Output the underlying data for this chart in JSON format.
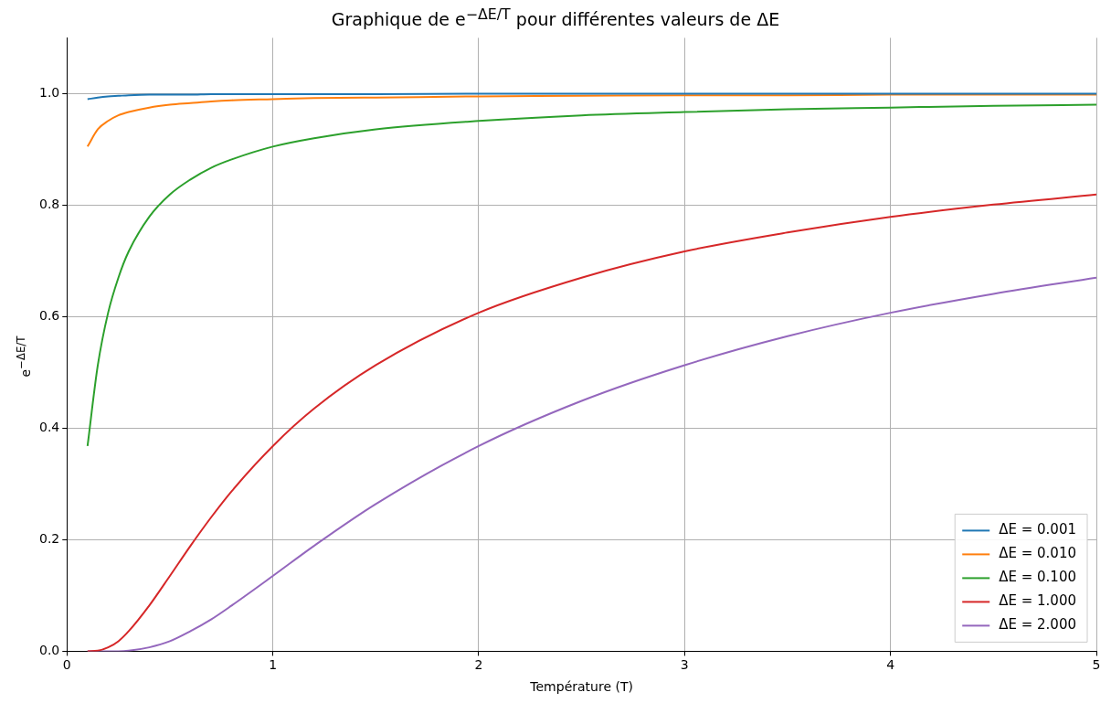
{
  "chart_data": {
    "type": "line",
    "title": "Graphique de e$^{−ΔE/T}$ pour différentes valeurs de ΔE",
    "xlabel": "Température (T)",
    "ylabel": "e$^{−ΔE/T}$",
    "x": [
      0.1,
      0.15,
      0.2,
      0.25,
      0.3,
      0.4,
      0.5,
      0.6,
      0.7,
      0.8,
      1.0,
      1.2,
      1.5,
      2,
      2.5,
      3,
      3.5,
      4,
      4.5,
      5
    ],
    "series": [
      {
        "name": "ΔE = 0.001",
        "color": "#1f77b4",
        "values": [
          0.99,
          0.993,
          0.995,
          0.996,
          0.997,
          0.998,
          0.998,
          0.998,
          0.999,
          0.999,
          0.999,
          0.999,
          0.999,
          1.0,
          1.0,
          1.0,
          1.0,
          1.0,
          1.0,
          1.0
        ]
      },
      {
        "name": "ΔE = 0.010",
        "color": "#ff7f0e",
        "values": [
          0.905,
          0.936,
          0.951,
          0.961,
          0.967,
          0.975,
          0.98,
          0.983,
          0.986,
          0.988,
          0.99,
          0.992,
          0.993,
          0.995,
          0.996,
          0.997,
          0.997,
          0.998,
          0.998,
          0.998
        ]
      },
      {
        "name": "ΔE = 0.100",
        "color": "#2ca02c",
        "values": [
          0.368,
          0.513,
          0.607,
          0.67,
          0.717,
          0.779,
          0.819,
          0.846,
          0.867,
          0.882,
          0.905,
          0.92,
          0.936,
          0.951,
          0.961,
          0.967,
          0.972,
          0.975,
          0.978,
          0.98
        ]
      },
      {
        "name": "ΔE = 1.000",
        "color": "#d62728",
        "values": [
          0.0,
          0.001,
          0.007,
          0.018,
          0.036,
          0.082,
          0.135,
          0.189,
          0.24,
          0.287,
          0.368,
          0.435,
          0.513,
          0.607,
          0.67,
          0.717,
          0.751,
          0.779,
          0.801,
          0.819
        ]
      },
      {
        "name": "ΔE = 2.000",
        "color": "#9467bd",
        "values": [
          0.0,
          0.0,
          0.0,
          0.0,
          0.001,
          0.007,
          0.018,
          0.036,
          0.057,
          0.082,
          0.135,
          0.189,
          0.264,
          0.368,
          0.449,
          0.513,
          0.565,
          0.607,
          0.641,
          0.67
        ]
      }
    ],
    "xlim": [
      0,
      5
    ],
    "xticks": [
      0,
      1,
      2,
      3,
      4,
      5
    ],
    "ylim": [
      0,
      1.1
    ],
    "yticks": [
      {
        "value": 0,
        "label": "0.0"
      },
      {
        "value": 0.2,
        "label": "0.2"
      },
      {
        "value": 0.4,
        "label": "0.4"
      },
      {
        "value": 0.6,
        "label": "0.6"
      },
      {
        "value": 0.8,
        "label": "0.8"
      },
      {
        "value": 1.0,
        "label": "1.0"
      }
    ],
    "grid": true,
    "legend": "bottom right",
    "marker": "none",
    "line_style": "solid"
  }
}
